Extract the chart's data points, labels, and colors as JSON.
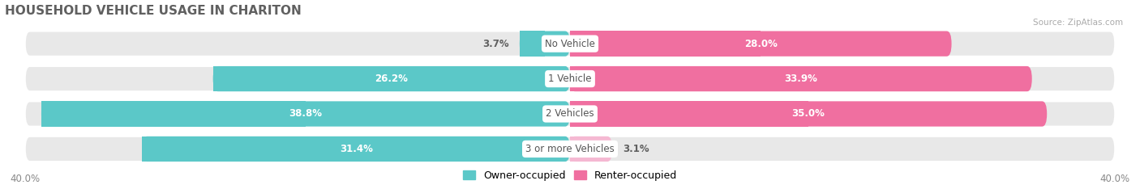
{
  "title": "HOUSEHOLD VEHICLE USAGE IN CHARITON",
  "source": "Source: ZipAtlas.com",
  "categories": [
    "No Vehicle",
    "1 Vehicle",
    "2 Vehicles",
    "3 or more Vehicles"
  ],
  "owner_values": [
    3.7,
    26.2,
    38.8,
    31.4
  ],
  "renter_values": [
    28.0,
    33.9,
    35.0,
    3.1
  ],
  "owner_color": "#5bc8c8",
  "renter_color": "#f06fa0",
  "renter_color_light": "#f5b8d2",
  "bg_color": "#e8e8e8",
  "axis_limit": 40.0,
  "bar_height": 0.72,
  "label_fontsize": 8.5,
  "title_fontsize": 11,
  "value_fontsize": 8.5,
  "legend_fontsize": 9,
  "axis_label_fontsize": 8.5,
  "title_color": "#606060",
  "value_color_dark": "#606060",
  "source_color": "#aaaaaa"
}
